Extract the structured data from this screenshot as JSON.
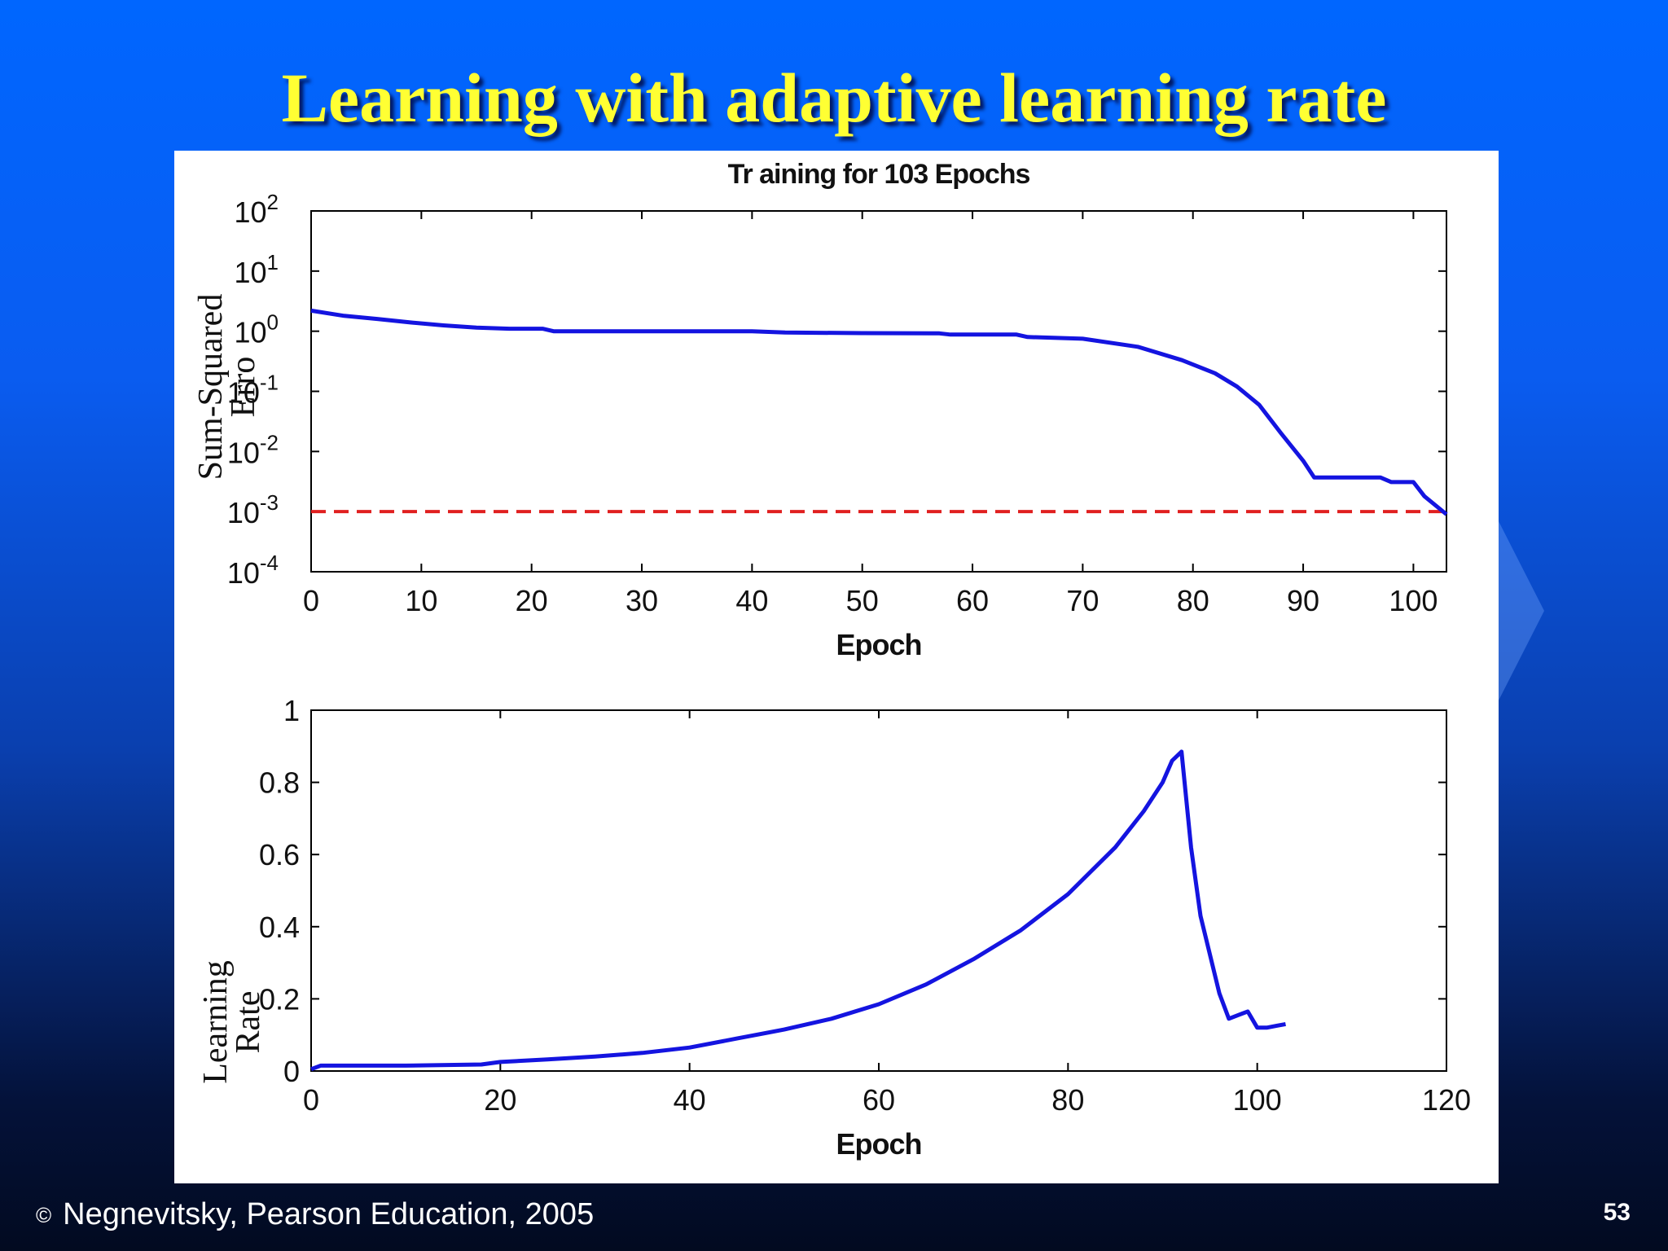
{
  "slide": {
    "title": "Learning with adaptive learning rate",
    "footer": "Negnevitsky, Pearson Education, 2005",
    "copyright_symbol": "©",
    "page_number": "53"
  },
  "colors": {
    "line": "#1414e0",
    "goal": "#e02020",
    "title": "#ffff33"
  },
  "chart_data": [
    {
      "type": "line",
      "title": "Tr aining for 103 Epochs",
      "xlabel": "Epoch",
      "ylabel": "Sum-Squared Erro",
      "xlim": [
        0,
        103
      ],
      "ylim": [
        0.0001,
        100
      ],
      "yscale": "log",
      "xticks": [
        0,
        10,
        20,
        30,
        40,
        50,
        60,
        70,
        80,
        90,
        100
      ],
      "yticks": [
        {
          "base": "10",
          "exp": "2"
        },
        {
          "base": "10",
          "exp": "1"
        },
        {
          "base": "10",
          "exp": "0"
        },
        {
          "base": "10",
          "exp": "-1"
        },
        {
          "base": "10",
          "exp": "-2"
        },
        {
          "base": "10",
          "exp": "-3"
        },
        {
          "base": "10",
          "exp": "-4"
        }
      ],
      "ytick_values": [
        100,
        10,
        1,
        0.1,
        0.01,
        0.001,
        0.0001
      ],
      "goal": 0.001,
      "series": [
        {
          "x": [
            0,
            3,
            6,
            9,
            12,
            15,
            18,
            21,
            22,
            30,
            40,
            43,
            50,
            57,
            58,
            64,
            65,
            70,
            75,
            79,
            82,
            84,
            86,
            88,
            90,
            91,
            94,
            97,
            98,
            100,
            101,
            103
          ],
          "y": [
            2.2,
            1.8,
            1.6,
            1.4,
            1.25,
            1.15,
            1.1,
            1.1,
            1.0,
            1.0,
            1.0,
            0.95,
            0.93,
            0.92,
            0.88,
            0.88,
            0.8,
            0.75,
            0.55,
            0.33,
            0.2,
            0.12,
            0.06,
            0.02,
            0.007,
            0.0037,
            0.0037,
            0.0037,
            0.0031,
            0.0031,
            0.0018,
            0.0009
          ]
        }
      ]
    },
    {
      "type": "line",
      "xlabel": "Epoch",
      "ylabel": "Learning Rate",
      "xlim": [
        0,
        120
      ],
      "ylim": [
        0,
        1
      ],
      "xticks": [
        0,
        20,
        40,
        60,
        80,
        100,
        120
      ],
      "yticks": [
        0,
        0.2,
        0.4,
        0.6,
        0.8,
        1
      ],
      "ytick_labels": [
        "0",
        "0.2",
        "0.4",
        "0.6",
        "0.8",
        "1"
      ],
      "series": [
        {
          "x": [
            0,
            1,
            2,
            5,
            10,
            18,
            20,
            25,
            30,
            35,
            40,
            45,
            50,
            55,
            60,
            65,
            70,
            75,
            80,
            85,
            88,
            90,
            91,
            92,
            93,
            94,
            96,
            97,
            98,
            99,
            100,
            101,
            102,
            103
          ],
          "y": [
            0.005,
            0.015,
            0.015,
            0.015,
            0.015,
            0.018,
            0.025,
            0.032,
            0.04,
            0.05,
            0.065,
            0.09,
            0.115,
            0.145,
            0.185,
            0.24,
            0.31,
            0.39,
            0.49,
            0.62,
            0.72,
            0.8,
            0.86,
            0.885,
            0.62,
            0.43,
            0.215,
            0.145,
            0.155,
            0.165,
            0.12,
            0.12,
            0.125,
            0.13
          ]
        }
      ]
    }
  ]
}
